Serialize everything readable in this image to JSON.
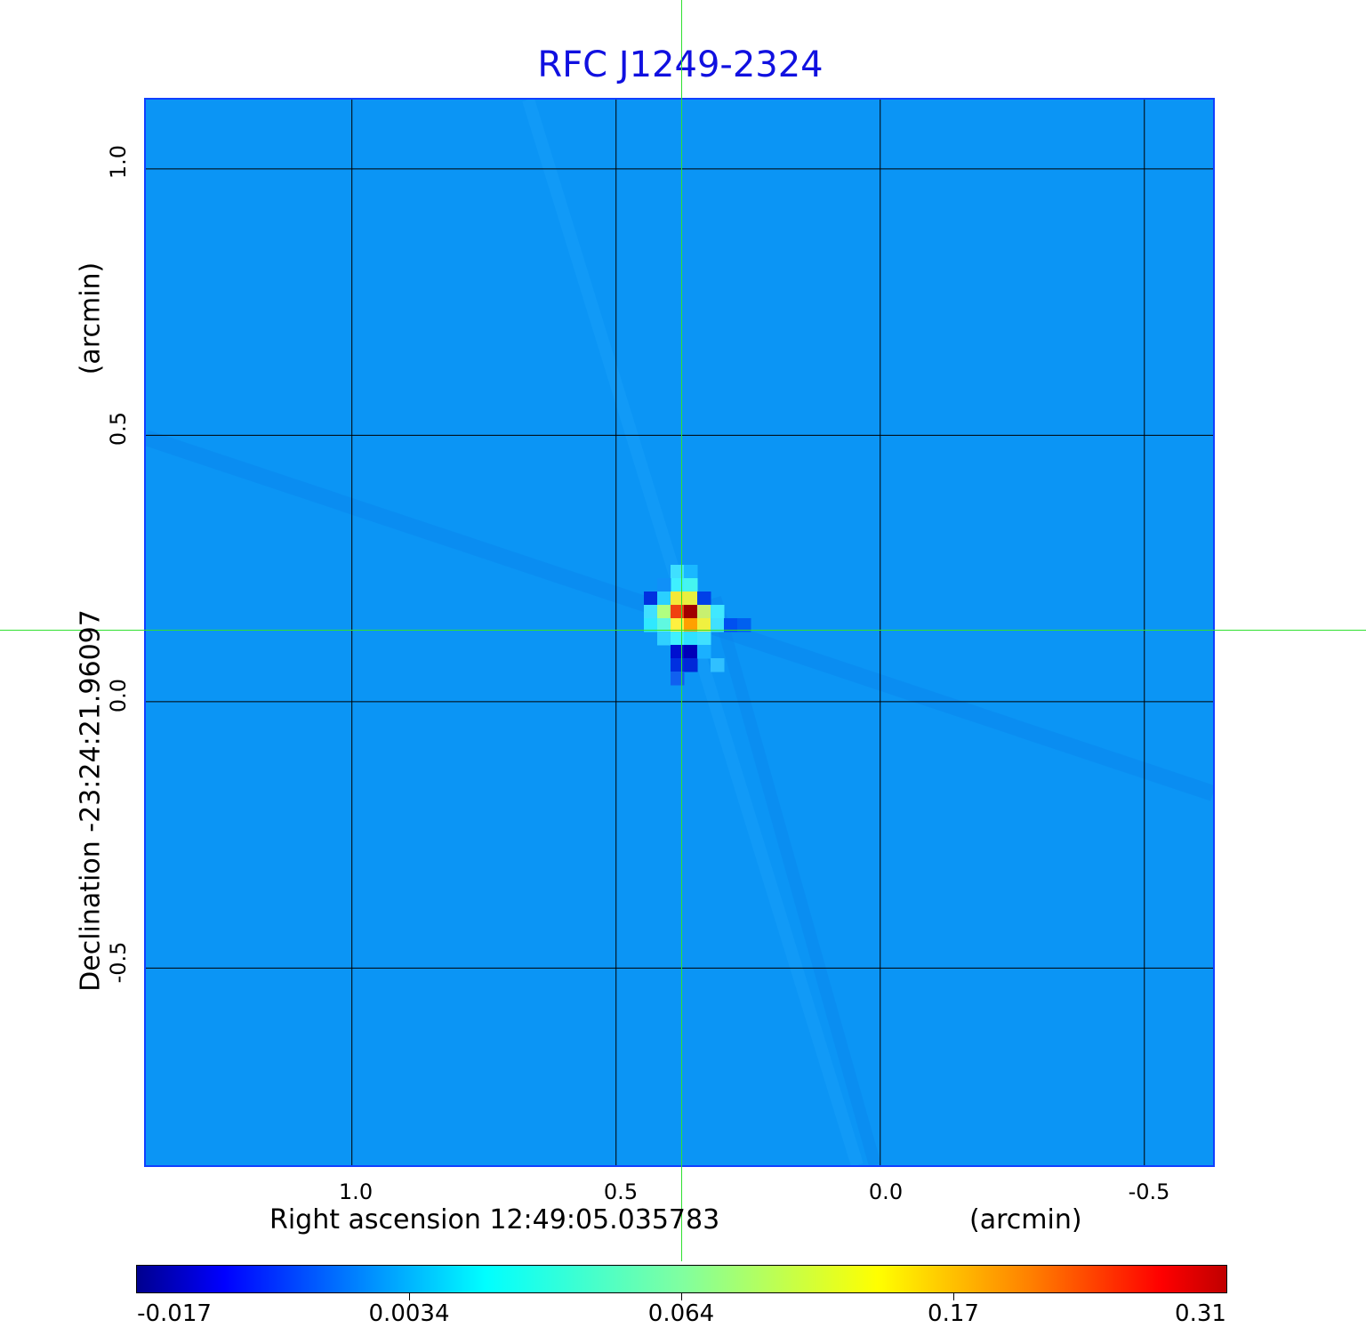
{
  "chart_data": {
    "type": "heatmap",
    "title": "RFC J1249-2324",
    "xlabel": "Right ascension  12:49:05.035783",
    "xunit": "(arcmin)",
    "ylabel": "Declination  -23:24:21.96097",
    "yunit": "(arcmin)",
    "x_ticks": [
      "1.0",
      "0.5",
      "0.0",
      "-0.5"
    ],
    "y_ticks": [
      "1.0",
      "0.5",
      "0.0",
      "-0.5"
    ],
    "xlim": [
      1.39,
      -0.63
    ],
    "ylim": [
      -0.87,
      1.13
    ],
    "grid": true,
    "crosshair": {
      "x": 0.375,
      "y": 0.135
    },
    "colorbar": {
      "ticks": [
        "-0.017",
        "0.0034",
        "0.064",
        "0.17",
        "0.31"
      ],
      "range": [
        -0.017,
        0.31
      ],
      "colormap": "jet",
      "placement": "bottom"
    },
    "peak_value": 0.31,
    "colors": {
      "title": "#1010e0",
      "background": "#0b95f5",
      "crosshair": "#30e030",
      "frame": "#1040ff"
    }
  }
}
